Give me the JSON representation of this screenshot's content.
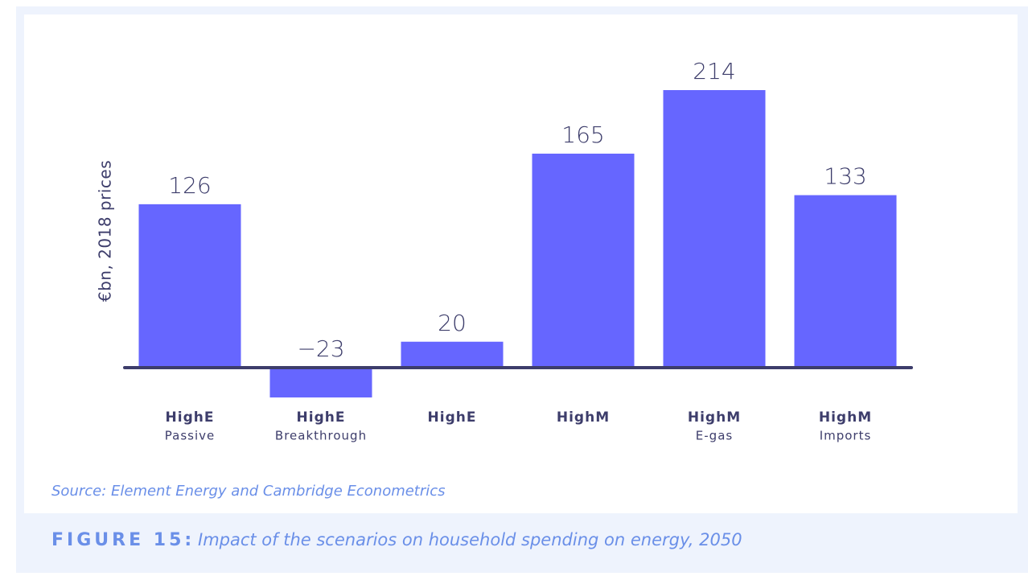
{
  "chart_data": {
    "type": "bar",
    "y_label": "€bn, 2018 prices",
    "categories": [
      [
        "HighE",
        "Passive"
      ],
      [
        "HighE",
        "Breakthrough"
      ],
      [
        "HighE"
      ],
      [
        "HighM"
      ],
      [
        "HighM",
        "E-gas"
      ],
      [
        "HighM",
        "Imports"
      ]
    ],
    "values": [
      126,
      -23,
      20,
      165,
      214,
      133
    ],
    "value_labels": [
      "126",
      "−23",
      "20",
      "165",
      "214",
      "133"
    ],
    "color": "#6666ff",
    "source": "Source: Element Energy and Cambridge Econometrics",
    "figure_number": "FIGURE 15:",
    "figure_caption": "Impact of the scenarios on household spending on energy, 2050"
  }
}
